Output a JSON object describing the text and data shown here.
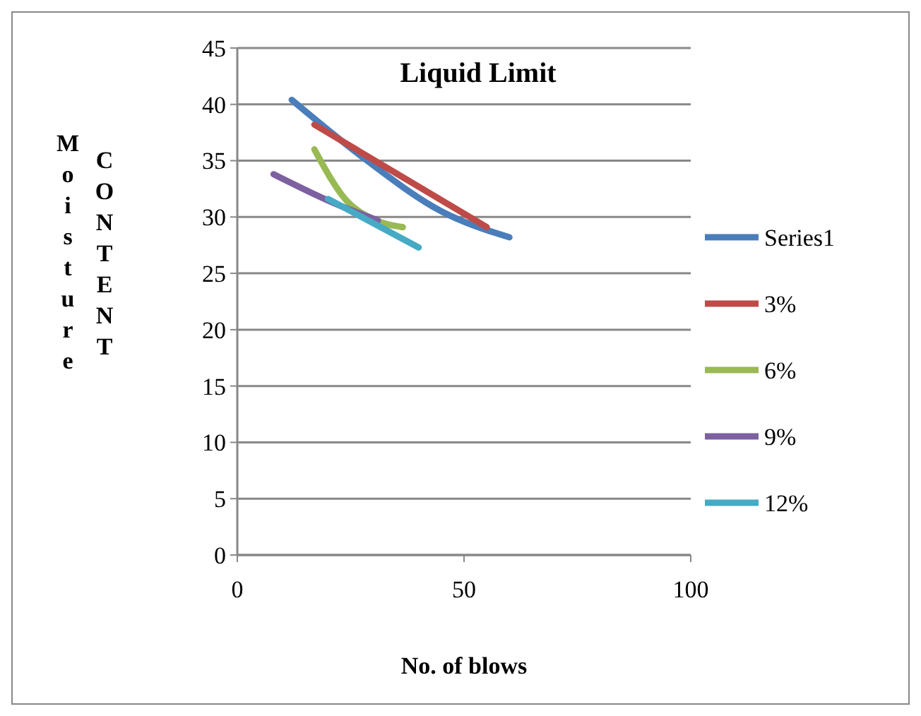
{
  "chart_data": {
    "type": "line",
    "title": "Liquid Limit",
    "xlabel": "No. of blows",
    "ylabel": "Moisture CONTENT",
    "xlim": [
      0,
      100
    ],
    "xticks": [
      0,
      50,
      100
    ],
    "ylim": [
      0,
      45
    ],
    "yticks": [
      0,
      5,
      10,
      15,
      20,
      25,
      30,
      35,
      40,
      45
    ],
    "grid": "y",
    "legend": "right",
    "marker": "none",
    "series": [
      {
        "name": "Series1",
        "color": "#4a7ebb",
        "x": [
          12,
          28,
          45,
          60
        ],
        "values": [
          40.4,
          35.2,
          30.5,
          28.2
        ]
      },
      {
        "name": "3%",
        "color": "#be4b48",
        "x": [
          17,
          55
        ],
        "values": [
          38.2,
          29.1
        ]
      },
      {
        "name": "6%",
        "color": "#98b954",
        "x": [
          17,
          24,
          30,
          36.5
        ],
        "values": [
          36,
          31.5,
          29.8,
          29.1
        ]
      },
      {
        "name": "9%",
        "color": "#7d60a0",
        "x": [
          8,
          21.5,
          31
        ],
        "values": [
          33.8,
          31.2,
          29.7
        ]
      },
      {
        "name": "12%",
        "color": "#46aac5",
        "x": [
          20,
          40
        ],
        "values": [
          31.6,
          27.3
        ]
      }
    ]
  }
}
